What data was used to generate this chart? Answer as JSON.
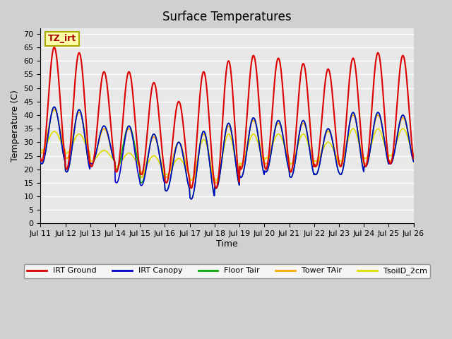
{
  "title": "Surface Temperatures",
  "ylabel": "Temperature (C)",
  "xlabel": "Time",
  "annotation_text": "TZ_irt",
  "ylim": [
    0,
    72
  ],
  "yticks": [
    0,
    5,
    10,
    15,
    20,
    25,
    30,
    35,
    40,
    45,
    50,
    55,
    60,
    65,
    70
  ],
  "x_day_labels": [
    "Jul 11",
    "Jul 12",
    "Jul 13",
    "Jul 14",
    "Jul 15",
    "Jul 16",
    "Jul 17",
    "Jul 18",
    "Jul 19",
    "Jul 20",
    "Jul 21",
    "Jul 22",
    "Jul 23",
    "Jul 24",
    "Jul 25",
    "Jul 26"
  ],
  "n_days": 15,
  "pts_per_day": 48,
  "lines": [
    {
      "label": "IRT Ground",
      "color": "#dd0000"
    },
    {
      "label": "IRT Canopy",
      "color": "#0000cc"
    },
    {
      "label": "Floor Tair",
      "color": "#00aa00"
    },
    {
      "label": "Tower TAir",
      "color": "#ffaa00"
    },
    {
      "label": "TsoilD_2cm",
      "color": "#dddd00"
    }
  ],
  "peaks_irt_ground": [
    65,
    63,
    56,
    56,
    52,
    45,
    56,
    60,
    62,
    61,
    59,
    57,
    61,
    63,
    62
  ],
  "peaks_canopy": [
    43,
    42,
    36,
    36,
    33,
    30,
    34,
    37,
    39,
    38,
    38,
    35,
    41,
    41,
    40
  ],
  "peaks_floor": [
    43,
    42,
    36,
    36,
    33,
    30,
    34,
    37,
    39,
    38,
    38,
    35,
    41,
    41,
    40
  ],
  "peaks_tower": [
    42,
    41,
    35,
    35,
    32,
    30,
    33,
    36,
    38,
    37,
    37,
    34,
    40,
    40,
    39
  ],
  "peaks_soil": [
    34,
    33,
    27,
    26,
    25,
    24,
    31,
    33,
    33,
    33,
    33,
    30,
    35,
    35,
    35
  ],
  "mins_irt_ground": [
    23,
    20,
    21,
    19,
    18,
    15,
    13,
    13,
    20,
    20,
    19,
    21,
    21,
    21,
    22
  ],
  "mins_canopy": [
    22,
    19,
    22,
    15,
    14,
    12,
    9,
    13,
    17,
    19,
    17,
    18,
    18,
    21,
    22
  ],
  "mins_floor": [
    22,
    19,
    22,
    20,
    15,
    12,
    9,
    13,
    17,
    19,
    17,
    18,
    18,
    21,
    22
  ],
  "mins_tower": [
    26,
    24,
    22,
    20,
    17,
    17,
    14,
    15,
    21,
    22,
    20,
    21,
    21,
    22,
    23
  ],
  "mins_soil": [
    27,
    26,
    23,
    21,
    19,
    18,
    16,
    16,
    22,
    24,
    22,
    23,
    23,
    24,
    25
  ]
}
